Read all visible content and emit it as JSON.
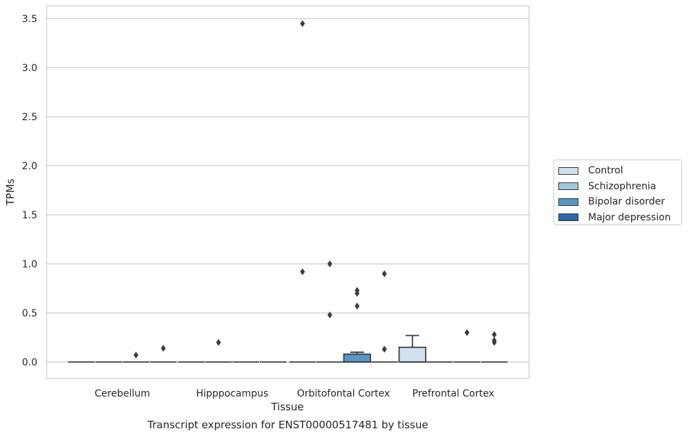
{
  "caption": "Transcript expression for ENST00000517481 by tissue",
  "chart_data": {
    "type": "box",
    "xlabel": "Tissue",
    "ylabel": "TPMs",
    "ylim": [
      -0.17,
      3.63
    ],
    "yticks": [
      0.0,
      0.5,
      1.0,
      1.5,
      2.0,
      2.5,
      3.0,
      3.5
    ],
    "ytick_labels": [
      "0.0",
      "0.5",
      "1.0",
      "1.5",
      "2.0",
      "2.5",
      "3.0",
      "3.5"
    ],
    "categories": [
      "Cerebellum",
      "Hipppocampus",
      "Orbitofontal Cortex",
      "Prefrontal Cortex"
    ],
    "grid": "horizontal",
    "legend_position": "right",
    "series": [
      {
        "name": "Control",
        "color": "#d1e0f0"
      },
      {
        "name": "Schizophrenia",
        "color": "#9ec7df"
      },
      {
        "name": "Bipolar disorder",
        "color": "#5697c6"
      },
      {
        "name": "Major depression",
        "color": "#2a68a8"
      }
    ],
    "boxes": [
      {
        "category": "Cerebellum",
        "series": "Control",
        "q1": 0,
        "median": 0,
        "q3": 0,
        "whisker_low": 0,
        "whisker_high": 0,
        "outliers": []
      },
      {
        "category": "Cerebellum",
        "series": "Schizophrenia",
        "q1": 0,
        "median": 0,
        "q3": 0,
        "whisker_low": 0,
        "whisker_high": 0,
        "outliers": []
      },
      {
        "category": "Cerebellum",
        "series": "Bipolar disorder",
        "q1": 0,
        "median": 0,
        "q3": 0,
        "whisker_low": 0,
        "whisker_high": 0,
        "outliers": [
          0.07
        ]
      },
      {
        "category": "Cerebellum",
        "series": "Major depression",
        "q1": 0,
        "median": 0,
        "q3": 0,
        "whisker_low": 0,
        "whisker_high": 0,
        "outliers": [
          0.14
        ]
      },
      {
        "category": "Hipppocampus",
        "series": "Control",
        "q1": 0,
        "median": 0,
        "q3": 0,
        "whisker_low": 0,
        "whisker_high": 0,
        "outliers": []
      },
      {
        "category": "Hipppocampus",
        "series": "Schizophrenia",
        "q1": 0,
        "median": 0,
        "q3": 0,
        "whisker_low": 0,
        "whisker_high": 0,
        "outliers": [
          0.2
        ]
      },
      {
        "category": "Hipppocampus",
        "series": "Bipolar disorder",
        "q1": 0,
        "median": 0,
        "q3": 0,
        "whisker_low": 0,
        "whisker_high": 0,
        "outliers": []
      },
      {
        "category": "Hipppocampus",
        "series": "Major depression",
        "q1": 0,
        "median": 0,
        "q3": 0,
        "whisker_low": 0,
        "whisker_high": 0,
        "outliers": []
      },
      {
        "category": "Orbitofontal Cortex",
        "series": "Control",
        "q1": 0,
        "median": 0,
        "q3": 0,
        "whisker_low": 0,
        "whisker_high": 0,
        "outliers": [
          0.92,
          3.45
        ]
      },
      {
        "category": "Orbitofontal Cortex",
        "series": "Schizophrenia",
        "q1": 0,
        "median": 0,
        "q3": 0,
        "whisker_low": 0,
        "whisker_high": 0,
        "outliers": [
          0.48,
          1.0
        ]
      },
      {
        "category": "Orbitofontal Cortex",
        "series": "Bipolar disorder",
        "q1": 0,
        "median": 0,
        "q3": 0.08,
        "whisker_low": 0,
        "whisker_high": 0.1,
        "outliers": [
          0.57,
          0.7,
          0.73
        ]
      },
      {
        "category": "Orbitofontal Cortex",
        "series": "Major depression",
        "q1": 0,
        "median": 0,
        "q3": 0,
        "whisker_low": 0,
        "whisker_high": 0,
        "outliers": [
          0.13,
          0.9
        ]
      },
      {
        "category": "Prefrontal Cortex",
        "series": "Control",
        "q1": 0,
        "median": 0,
        "q3": 0.15,
        "whisker_low": 0,
        "whisker_high": 0.27,
        "outliers": []
      },
      {
        "category": "Prefrontal Cortex",
        "series": "Schizophrenia",
        "q1": 0,
        "median": 0,
        "q3": 0,
        "whisker_low": 0,
        "whisker_high": 0,
        "outliers": []
      },
      {
        "category": "Prefrontal Cortex",
        "series": "Bipolar disorder",
        "q1": 0,
        "median": 0,
        "q3": 0,
        "whisker_low": 0,
        "whisker_high": 0,
        "outliers": [
          0.3
        ]
      },
      {
        "category": "Prefrontal Cortex",
        "series": "Major depression",
        "q1": 0,
        "median": 0,
        "q3": 0,
        "whisker_low": 0,
        "whisker_high": 0,
        "outliers": [
          0.2,
          0.22,
          0.28
        ]
      }
    ]
  }
}
